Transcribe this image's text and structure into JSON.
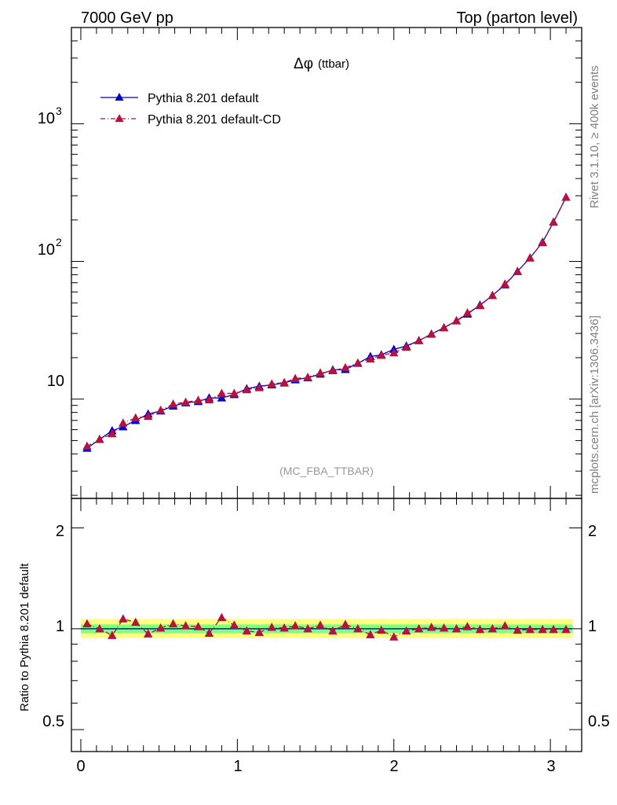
{
  "header": {
    "left": "7000 GeV pp",
    "right": "Top (parton level)"
  },
  "side_text": {
    "top": "Rivet 3.1.10, ≥ 400k events",
    "bottom": "mcplots.cern.ch [arXiv:1306.3436]"
  },
  "colors": {
    "series_default": "#0000cc",
    "series_cd": "#b5123e",
    "band_yellow": "#ffff80",
    "band_green": "#80ff80"
  },
  "chart_data": [
    {
      "type": "line",
      "title_main": "Δφ",
      "title_sub": "(ttbar)",
      "watermark": "(MC_FBA_TTBAR)",
      "y_scale": "log",
      "ylim": [
        1.9,
        5000
      ],
      "xlim": [
        -0.06,
        3.2
      ],
      "y_tick_labels": [
        "10",
        "10",
        "10"
      ],
      "y_tick_exponents": [
        "",
        "2",
        "3"
      ],
      "y_tick_values": [
        10,
        100,
        1000
      ],
      "legend_position": "top-left",
      "x": [
        0.04,
        0.12,
        0.2,
        0.27,
        0.35,
        0.43,
        0.51,
        0.59,
        0.67,
        0.75,
        0.82,
        0.9,
        0.98,
        1.06,
        1.14,
        1.22,
        1.3,
        1.37,
        1.45,
        1.53,
        1.61,
        1.69,
        1.77,
        1.85,
        1.92,
        2.0,
        2.08,
        2.16,
        2.24,
        2.32,
        2.4,
        2.47,
        2.55,
        2.63,
        2.71,
        2.79,
        2.87,
        2.95,
        3.02,
        3.1
      ],
      "series": [
        {
          "name": "Pythia 8.201 default",
          "values": [
            4.4,
            5.1,
            5.9,
            6.3,
            7.0,
            7.8,
            8.2,
            8.9,
            9.4,
            9.6,
            10.2,
            10.2,
            10.8,
            11.9,
            12.4,
            12.7,
            13.1,
            13.8,
            14.3,
            15.2,
            16.3,
            16.4,
            18.2,
            20.4,
            21.0,
            23.0,
            24.3,
            26.6,
            29.7,
            33.0,
            37.0,
            41.5,
            48.2,
            56.6,
            67.7,
            84.8,
            106,
            138,
            193,
            292
          ],
          "marker": "triangle",
          "line": "solid"
        },
        {
          "name": "Pythia 8.201 default-CD",
          "values": [
            4.55,
            5.1,
            5.6,
            6.7,
            7.3,
            7.5,
            8.3,
            9.2,
            9.5,
            9.8,
            9.9,
            11.0,
            11.0,
            11.7,
            12.1,
            12.9,
            13.2,
            14.1,
            14.4,
            15.5,
            16.1,
            16.9,
            18.3,
            19.6,
            20.8,
            21.7,
            23.8,
            26.6,
            29.6,
            33.0,
            37.1,
            42.3,
            47.8,
            56.6,
            68.6,
            84.4,
            106,
            137,
            193,
            292
          ]
        }
      ]
    },
    {
      "type": "line",
      "ylabel": "Ratio to Pythia 8.201 default",
      "y_scale": "log",
      "ylim": [
        0.43,
        2.45
      ],
      "xlim": [
        -0.06,
        3.2
      ],
      "x_tick_labels": [
        "0",
        "1",
        "2",
        "3"
      ],
      "y_tick_labels": [
        "0.5",
        "1",
        "2"
      ],
      "y_tick_values": [
        0.5,
        1,
        2
      ],
      "reference_value": 1,
      "band_yellow": [
        0.94,
        1.07
      ],
      "band_green": [
        0.97,
        1.03
      ],
      "x": [
        0.04,
        0.12,
        0.2,
        0.27,
        0.35,
        0.43,
        0.51,
        0.59,
        0.67,
        0.75,
        0.82,
        0.9,
        0.98,
        1.06,
        1.14,
        1.22,
        1.3,
        1.37,
        1.45,
        1.53,
        1.61,
        1.69,
        1.77,
        1.85,
        1.92,
        2.0,
        2.08,
        2.16,
        2.24,
        2.32,
        2.4,
        2.47,
        2.55,
        2.63,
        2.71,
        2.79,
        2.87,
        2.95,
        3.02,
        3.1
      ],
      "series": [
        {
          "name": "Pythia 8.201 default-CD",
          "values": [
            1.035,
            1.0,
            0.955,
            1.07,
            1.045,
            0.965,
            1.005,
            1.035,
            1.02,
            1.015,
            0.97,
            1.08,
            1.025,
            0.985,
            0.975,
            1.01,
            1.005,
            1.02,
            1.0,
            1.025,
            0.985,
            1.03,
            1.0,
            0.96,
            0.99,
            0.945,
            0.985,
            1.0,
            1.01,
            1.005,
            1.0,
            1.015,
            0.995,
            1.0,
            1.02,
            0.99,
            0.995,
            0.995,
            0.995,
            0.995
          ]
        }
      ]
    }
  ]
}
